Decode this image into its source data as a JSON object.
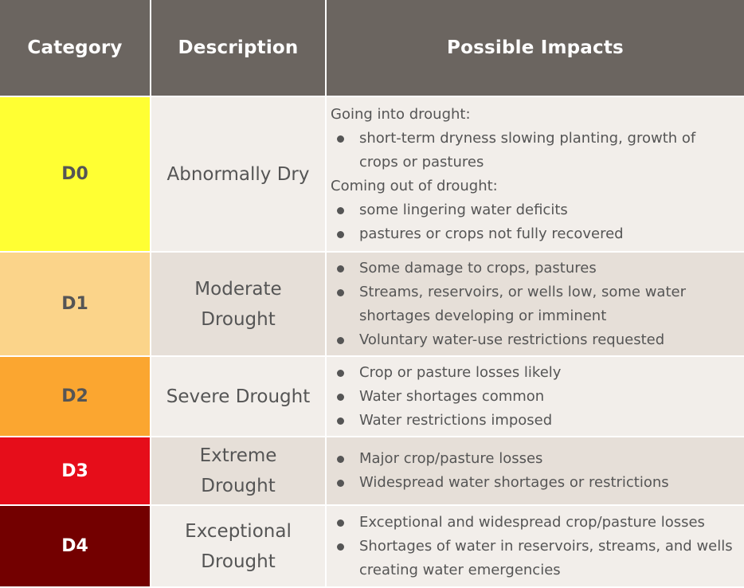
{
  "header": {
    "category": "Category",
    "description": "Description",
    "impacts": "Possible Impacts"
  },
  "rows": [
    {
      "category": "D0",
      "description": "Abnormally Dry",
      "color": "#ffff33",
      "text_color": "#555555",
      "groups": [
        {
          "heading": "Going into drought:",
          "bullets": [
            "short-term dryness slowing planting, growth of crops or pastures"
          ]
        },
        {
          "heading": "Coming out of drought:",
          "bullets": [
            "some lingering water deficits",
            "pastures or crops not fully recovered"
          ]
        }
      ]
    },
    {
      "category": "D1",
      "description": "Moderate Drought",
      "color": "#fbd48a",
      "text_color": "#555555",
      "groups": [
        {
          "heading": "",
          "bullets": [
            "Some damage to crops, pastures",
            "Streams, reservoirs, or wells low, some water shortages developing or imminent",
            "Voluntary water-use restrictions requested"
          ]
        }
      ]
    },
    {
      "category": "D2",
      "description": "Severe Drought",
      "color": "#fba630",
      "text_color": "#555555",
      "groups": [
        {
          "heading": "",
          "bullets": [
            "Crop or pasture losses likely",
            "Water shortages common",
            "Water restrictions imposed"
          ]
        }
      ]
    },
    {
      "category": "D3",
      "description": "Extreme Drought",
      "color": "#e60d1a",
      "text_color": "#ffffff",
      "groups": [
        {
          "heading": "",
          "bullets": [
            "Major crop/pasture losses",
            "Widespread water shortages or restrictions"
          ]
        }
      ]
    },
    {
      "category": "D4",
      "description": "Exceptional Drought",
      "color": "#730000",
      "text_color": "#ffffff",
      "groups": [
        {
          "heading": "",
          "bullets": [
            "Exceptional and widespread crop/pasture losses",
            "Shortages of water in reservoirs, streams, and wells creating water emergencies"
          ]
        }
      ]
    }
  ]
}
